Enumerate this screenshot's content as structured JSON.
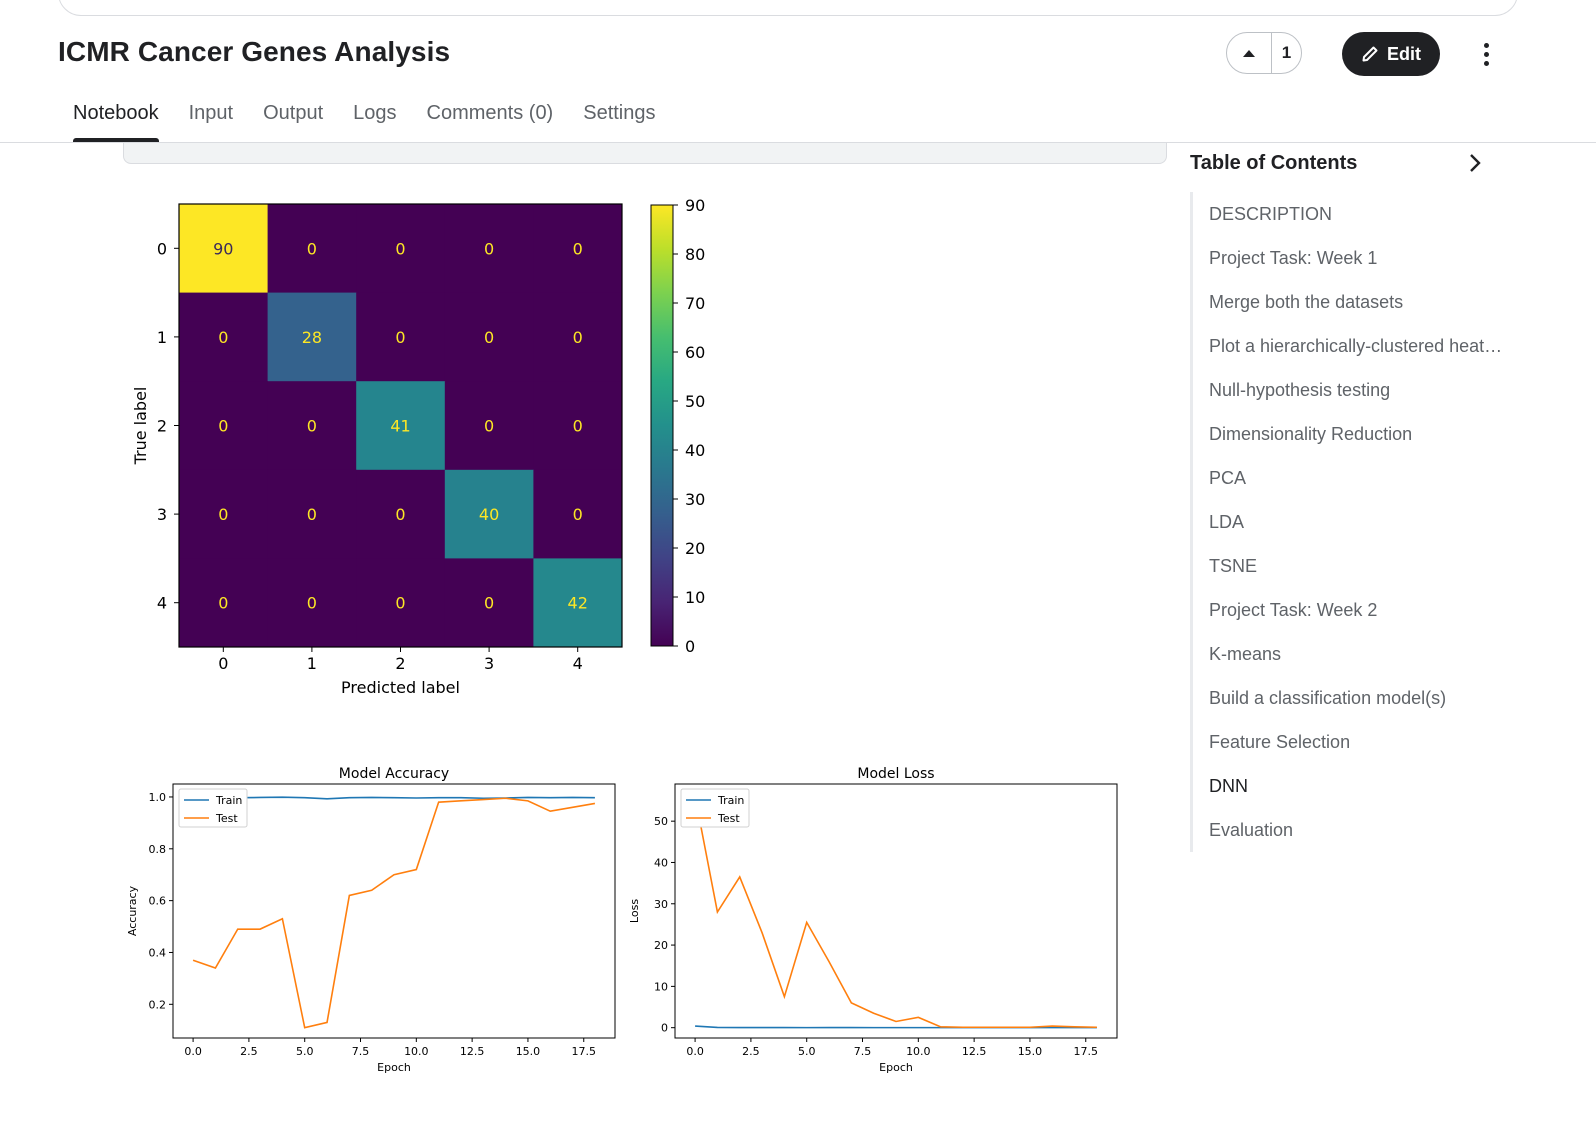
{
  "page": {
    "title": "ICMR Cancer Genes Analysis",
    "vote_count": "1",
    "edit_label": "Edit"
  },
  "tabs": [
    {
      "label": "Notebook",
      "active": true
    },
    {
      "label": "Input",
      "active": false
    },
    {
      "label": "Output",
      "active": false
    },
    {
      "label": "Logs",
      "active": false
    },
    {
      "label": "Comments (0)",
      "active": false
    },
    {
      "label": "Settings",
      "active": false
    }
  ],
  "toc": {
    "title": "Table of Contents",
    "items": [
      {
        "label": "DESCRIPTION",
        "active": false
      },
      {
        "label": "Project Task: Week 1",
        "active": false
      },
      {
        "label": "Merge both the datasets",
        "active": false
      },
      {
        "label": "Plot a hierarchically-clustered heat…",
        "active": false
      },
      {
        "label": "Null-hypothesis testing",
        "active": false
      },
      {
        "label": "Dimensionality Reduction",
        "active": false
      },
      {
        "label": "PCA",
        "active": false
      },
      {
        "label": "LDA",
        "active": false
      },
      {
        "label": "TSNE",
        "active": false
      },
      {
        "label": "Project Task: Week 2",
        "active": false
      },
      {
        "label": "K-means",
        "active": false
      },
      {
        "label": "Build a classification model(s)",
        "active": false
      },
      {
        "label": "Feature Selection",
        "active": false
      },
      {
        "label": "DNN",
        "active": true
      },
      {
        "label": "Evaluation",
        "active": false
      }
    ]
  },
  "colors": {
    "train_line": "#1f77b4",
    "test_line": "#ff7f0e",
    "viridis_low": "#440154",
    "viridis_high": "#fde725"
  },
  "chart_data": [
    {
      "type": "heatmap",
      "title": "",
      "xlabel": "Predicted label",
      "ylabel": "True label",
      "x_categories": [
        "0",
        "1",
        "2",
        "3",
        "4"
      ],
      "y_categories": [
        "0",
        "1",
        "2",
        "3",
        "4"
      ],
      "matrix": [
        [
          90,
          0,
          0,
          0,
          0
        ],
        [
          0,
          28,
          0,
          0,
          0
        ],
        [
          0,
          0,
          41,
          0,
          0
        ],
        [
          0,
          0,
          0,
          40,
          0
        ],
        [
          0,
          0,
          0,
          0,
          42
        ]
      ],
      "colorbar_range": [
        0,
        90
      ],
      "colorbar_ticks": [
        0,
        10,
        20,
        30,
        40,
        50,
        60,
        70,
        80,
        90
      ],
      "colormap": "viridis"
    },
    {
      "type": "line",
      "title": "Model Accuracy",
      "xlabel": "Epoch",
      "ylabel": "Accuracy",
      "xlim": [
        -0.9,
        18.9
      ],
      "ylim": [
        0.07,
        1.05
      ],
      "xticks": [
        0.0,
        2.5,
        5.0,
        7.5,
        10.0,
        12.5,
        15.0,
        17.5
      ],
      "yticks": [
        0.2,
        0.4,
        0.6,
        0.8,
        1.0
      ],
      "legend_position": "top-left",
      "x": [
        0,
        1,
        2,
        3,
        4,
        5,
        6,
        7,
        8,
        9,
        10,
        11,
        12,
        13,
        14,
        15,
        16,
        17,
        18
      ],
      "series": [
        {
          "name": "Train",
          "values": [
            0.995,
            0.996,
            0.997,
            0.998,
            0.999,
            0.997,
            0.993,
            0.997,
            0.998,
            0.997,
            0.996,
            0.997,
            0.997,
            0.995,
            0.996,
            0.998,
            0.997,
            0.998,
            0.997
          ]
        },
        {
          "name": "Test",
          "values": [
            0.37,
            0.34,
            0.49,
            0.49,
            0.53,
            0.11,
            0.13,
            0.62,
            0.64,
            0.7,
            0.72,
            0.98,
            0.985,
            0.99,
            0.995,
            0.985,
            0.945,
            0.96,
            0.975
          ]
        }
      ]
    },
    {
      "type": "line",
      "title": "Model Loss",
      "xlabel": "Epoch",
      "ylabel": "Loss",
      "xlim": [
        -0.9,
        18.9
      ],
      "ylim": [
        -2.5,
        59
      ],
      "xticks": [
        0.0,
        2.5,
        5.0,
        7.5,
        10.0,
        12.5,
        15.0,
        17.5
      ],
      "yticks": [
        0,
        10,
        20,
        30,
        40,
        50
      ],
      "legend_position": "top-left",
      "x": [
        0,
        1,
        2,
        3,
        4,
        5,
        6,
        7,
        8,
        9,
        10,
        11,
        12,
        13,
        14,
        15,
        16,
        17,
        18
      ],
      "series": [
        {
          "name": "Train",
          "values": [
            0.4,
            0.05,
            0.02,
            0.02,
            0.02,
            0.01,
            0.02,
            0.02,
            0.01,
            0.01,
            0.01,
            0.01,
            0.01,
            0.01,
            0.01,
            0.01,
            0.01,
            0.01,
            0.01
          ]
        },
        {
          "name": "Test",
          "values": [
            56,
            28,
            36.5,
            23,
            7.5,
            25.5,
            16,
            6,
            3.5,
            1.5,
            2.5,
            0.2,
            0.1,
            0.1,
            0.1,
            0.1,
            0.4,
            0.2,
            0.1
          ]
        }
      ]
    }
  ]
}
